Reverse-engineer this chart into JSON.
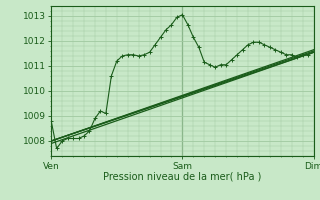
{
  "bg_color": "#c8e8c8",
  "grid_color": "#a0c8a0",
  "line_color": "#1a5c1a",
  "marker_color": "#1a5c1a",
  "xlabel": "Pression niveau de la mer( hPa )",
  "xtick_labels": [
    "Ven",
    "Sam",
    "Dim"
  ],
  "xtick_positions": [
    0,
    48,
    96
  ],
  "ylim": [
    1007.4,
    1013.4
  ],
  "yticks": [
    1008,
    1009,
    1010,
    1011,
    1012,
    1013
  ],
  "x_total": 96,
  "series1_x": [
    0,
    2,
    4,
    6,
    8,
    10,
    12,
    14,
    16,
    18,
    20,
    22,
    24,
    26,
    28,
    30,
    32,
    34,
    36,
    38,
    40,
    42,
    44,
    46,
    48,
    50,
    52,
    54,
    56,
    58,
    60,
    62,
    64,
    66,
    68,
    70,
    72,
    74,
    76,
    78,
    80,
    82,
    84,
    86,
    88,
    90,
    92,
    94,
    96
  ],
  "series1_y": [
    1008.8,
    1007.7,
    1008.0,
    1008.1,
    1008.1,
    1008.1,
    1008.2,
    1008.4,
    1008.9,
    1009.2,
    1009.1,
    1010.6,
    1011.2,
    1011.4,
    1011.45,
    1011.45,
    1011.4,
    1011.45,
    1011.55,
    1011.85,
    1012.15,
    1012.45,
    1012.65,
    1012.95,
    1013.05,
    1012.65,
    1012.15,
    1011.75,
    1011.15,
    1011.05,
    1010.95,
    1011.05,
    1011.05,
    1011.25,
    1011.45,
    1011.65,
    1011.85,
    1011.95,
    1011.95,
    1011.85,
    1011.75,
    1011.65,
    1011.55,
    1011.45,
    1011.45,
    1011.35,
    1011.45,
    1011.45,
    1011.55
  ],
  "series2_x": [
    0,
    96
  ],
  "series2_y": [
    1008.0,
    1011.55
  ],
  "series3_x": [
    0,
    96
  ],
  "series3_y": [
    1008.0,
    1011.6
  ],
  "series4_x": [
    0,
    96
  ],
  "series4_y": [
    1008.0,
    1011.65
  ],
  "series5_x": [
    0,
    96
  ],
  "series5_y": [
    1007.9,
    1011.55
  ]
}
